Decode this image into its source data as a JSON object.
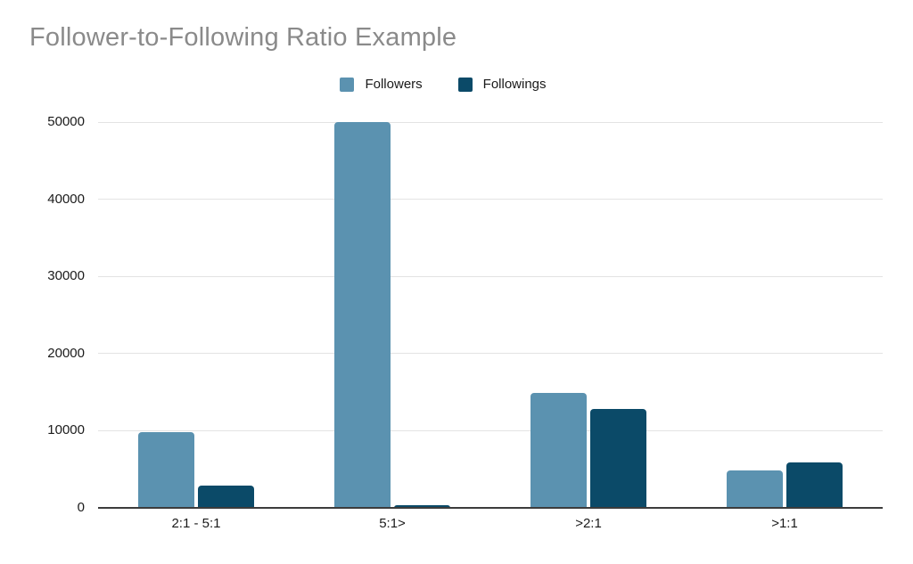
{
  "title": "Follower-to-Following Ratio Example",
  "chart_data": {
    "type": "bar",
    "title": "Follower-to-Following Ratio Example",
    "categories": [
      "2:1 - 5:1",
      "5:1>",
      ">2:1",
      ">1:1"
    ],
    "series": [
      {
        "name": "Followers",
        "color": "#5b92b0",
        "values": [
          9800,
          50000,
          14900,
          4900
        ]
      },
      {
        "name": "Followings",
        "color": "#0b4a68",
        "values": [
          2900,
          400,
          12800,
          5900
        ]
      }
    ],
    "xlabel": "",
    "ylabel": "",
    "ylim": [
      0,
      50000
    ],
    "yticks": [
      0,
      10000,
      20000,
      30000,
      40000,
      50000
    ],
    "legend_position": "top",
    "grid": "horizontal"
  },
  "colors": {
    "title_text": "#8a8a8a",
    "tick_label": "#1a1a1a",
    "gridline": "#e3e3e3",
    "axis_line": "#3c3c3c",
    "background": "#ffffff",
    "series_followers": "#5b92b0",
    "series_followings": "#0b4a68"
  }
}
